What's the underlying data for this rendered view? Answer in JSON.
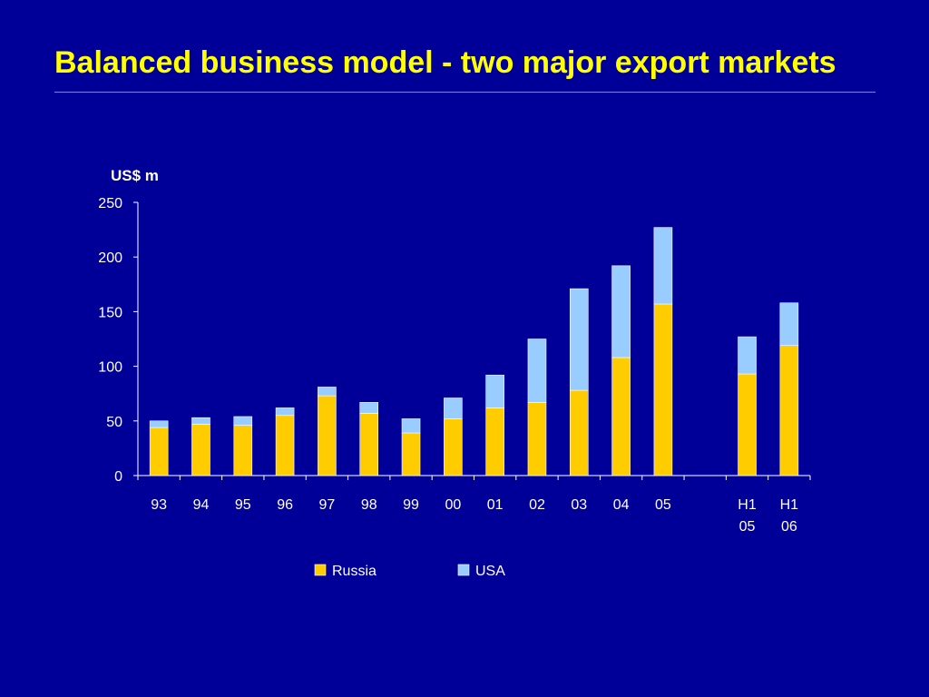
{
  "slide": {
    "title": "Balanced business model - two major export markets"
  },
  "colors": {
    "background": "#000099",
    "title": "#ffff00",
    "russia": "#ffcc00",
    "usa": "#99ccff",
    "text": "#ffffff"
  },
  "chart_data": {
    "type": "bar",
    "stacked": true,
    "ylabel": "US$ m",
    "xlabel": "",
    "ylim": [
      0,
      250
    ],
    "yticks": [
      0,
      50,
      100,
      150,
      200,
      250
    ],
    "grid": false,
    "legend_position": "bottom",
    "categories": [
      [
        "93"
      ],
      [
        "94"
      ],
      [
        "95"
      ],
      [
        "96"
      ],
      [
        "97"
      ],
      [
        "98"
      ],
      [
        "99"
      ],
      [
        "00"
      ],
      [
        "01"
      ],
      [
        "02"
      ],
      [
        "03"
      ],
      [
        "04"
      ],
      [
        "05"
      ],
      [
        ""
      ],
      [
        "H1",
        "05"
      ],
      [
        "H1",
        "06"
      ]
    ],
    "series": [
      {
        "name": "Russia",
        "color": "#ffcc00",
        "values": [
          44,
          47,
          46,
          55,
          73,
          57,
          39,
          52,
          62,
          67,
          78,
          108,
          157,
          0,
          93,
          119
        ]
      },
      {
        "name": "USA",
        "color": "#99ccff",
        "values": [
          6,
          6,
          8,
          7,
          8,
          10,
          13,
          19,
          30,
          58,
          93,
          84,
          70,
          0,
          34,
          39
        ]
      }
    ]
  }
}
